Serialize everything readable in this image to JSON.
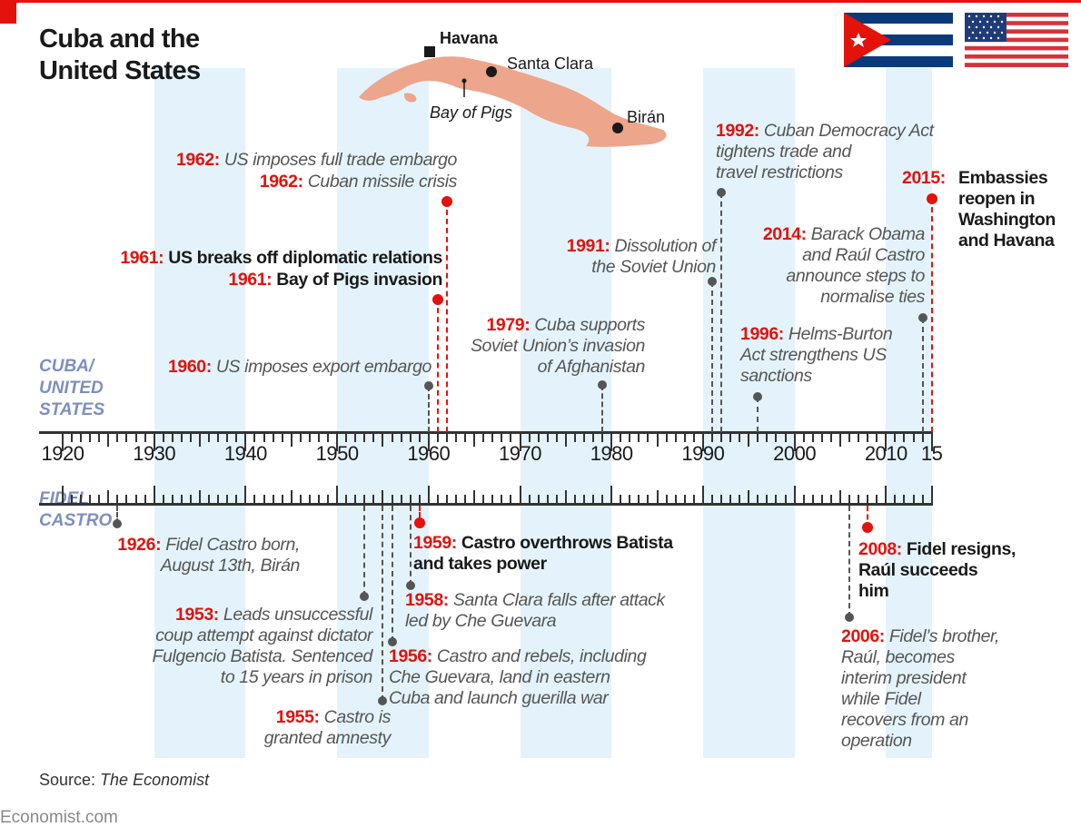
{
  "title": "Cuba and the\nUnited States",
  "map": {
    "havana": "Havana",
    "santa_clara": "Santa Clara",
    "bay_of_pigs": "Bay of Pigs",
    "biran": "Birán",
    "land_color": "#eda58c"
  },
  "flags": {
    "cuba": "cuba-flag",
    "usa": "us-flag"
  },
  "sections": {
    "top": "CUBA/\nUNITED\nSTATES",
    "bottom": "FIDEL\nCASTRO"
  },
  "axis": {
    "start": 1920,
    "end": 2015,
    "labels": [
      {
        "year": 1920,
        "text": "1920"
      },
      {
        "year": 1930,
        "text": "1930"
      },
      {
        "year": 1940,
        "text": "1940"
      },
      {
        "year": 1950,
        "text": "1950"
      },
      {
        "year": 1960,
        "text": "1960"
      },
      {
        "year": 1970,
        "text": "1970"
      },
      {
        "year": 1980,
        "text": "1980"
      },
      {
        "year": 1990,
        "text": "1990"
      },
      {
        "year": 2000,
        "text": "2000"
      },
      {
        "year": 2010,
        "text": "2010"
      },
      {
        "year": 2015,
        "text": "15"
      }
    ]
  },
  "colors": {
    "accent": "#e3120b",
    "band": "#e4f3fb",
    "section": "#7d8fbf"
  },
  "events": {
    "us": [
      {
        "year": 1960,
        "year_label": "1960:",
        "text": "US imposes export embargo",
        "highlight": false
      },
      {
        "year": 1961,
        "year_label": "1961:",
        "text": "Bay of Pigs invasion",
        "highlight": true
      },
      {
        "year": 1961,
        "year_label": "1961:",
        "text": "US breaks off diplomatic relations",
        "highlight": true
      },
      {
        "year": 1962,
        "year_label": "1962:",
        "text": "Cuban missile crisis",
        "highlight": true
      },
      {
        "year": 1962,
        "year_label": "1962:",
        "text": "US imposes full trade embargo",
        "highlight": false
      },
      {
        "year": 1979,
        "year_label": "1979:",
        "text": "Cuba supports\nSoviet Union’s invasion\nof Afghanistan",
        "highlight": false
      },
      {
        "year": 1991,
        "year_label": "1991:",
        "text": "Dissolution of\nthe Soviet Union",
        "highlight": false
      },
      {
        "year": 1992,
        "year_label": "1992:",
        "text": "Cuban Democracy Act\ntightens trade and\ntravel restrictions",
        "highlight": false
      },
      {
        "year": 1996,
        "year_label": "1996:",
        "text": "Helms-Burton\nAct strengthens US\nsanctions",
        "highlight": false
      },
      {
        "year": 2014,
        "year_label": "2014:",
        "text": "Barack Obama\nand Raúl Castro\nannounce steps to\nnormalise ties",
        "highlight": false
      },
      {
        "year": 2015,
        "year_label": "2015:",
        "text": "Embassies\nreopen in\nWashington\nand Havana",
        "highlight": true
      }
    ],
    "castro": [
      {
        "year": 1926,
        "year_label": "1926:",
        "text": "Fidel Castro born,\nAugust 13th, Birán",
        "highlight": false
      },
      {
        "year": 1953,
        "year_label": "1953:",
        "text": "Leads unsuccessful\ncoup attempt against dictator\nFulgencio Batista. Sentenced\nto 15 years in prison",
        "highlight": false
      },
      {
        "year": 1955,
        "year_label": "1955:",
        "text": "Castro is\ngranted amnesty",
        "highlight": false
      },
      {
        "year": 1956,
        "year_label": "1956:",
        "text": "Castro and rebels, including\nChe Guevara, land in eastern\nCuba and launch guerilla war",
        "highlight": false
      },
      {
        "year": 1958,
        "year_label": "1958:",
        "text": "Santa Clara falls after attack\nled by Che Guevara",
        "highlight": false
      },
      {
        "year": 1959,
        "year_label": "1959:",
        "text": "Castro overthrows Batista\nand takes power",
        "highlight": true
      },
      {
        "year": 2006,
        "year_label": "2006:",
        "text": "Fidel’s brother,\nRaúl, becomes\ninterim president\nwhile Fidel\nrecovers from an\noperation",
        "highlight": false
      },
      {
        "year": 2008,
        "year_label": "2008:",
        "text": "Fidel resigns,\nRaúl succeeds\nhim",
        "highlight": true
      }
    ]
  },
  "source": {
    "label": "Source: ",
    "name": "The Economist"
  },
  "brand": "Economist.com"
}
